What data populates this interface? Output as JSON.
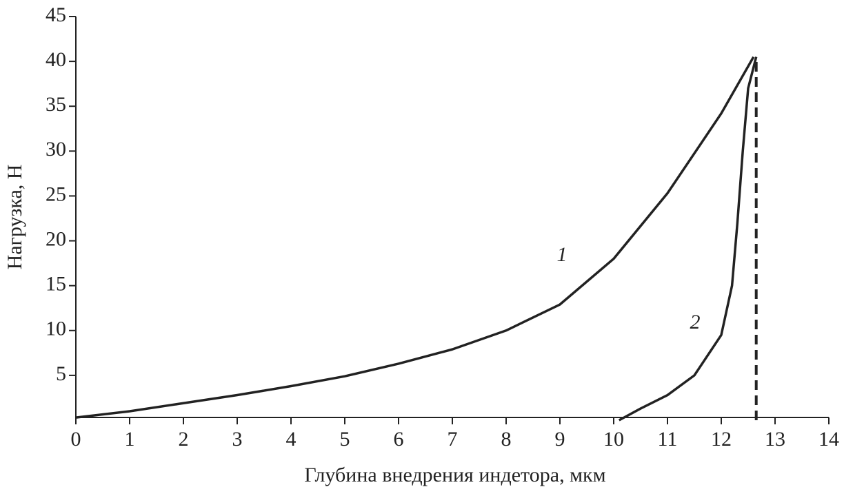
{
  "chart_data": {
    "type": "line",
    "x_label": "Глубина внедрения индетора, мкм",
    "y_label": "Нагрузка, Н",
    "xlim": [
      0,
      14
    ],
    "xticks": [
      0,
      1,
      2,
      3,
      4,
      5,
      6,
      7,
      8,
      9,
      10,
      11,
      12,
      13,
      14
    ],
    "ylim": [
      0,
      45
    ],
    "yticks": [
      5,
      10,
      15,
      20,
      25,
      30,
      35,
      40,
      45
    ],
    "grid": false,
    "series": [
      {
        "name": "1",
        "color": "#222222",
        "x": [
          0,
          1,
          2,
          3,
          4,
          5,
          6,
          7,
          8,
          9,
          10,
          11,
          12,
          12.6
        ],
        "values": [
          0.3,
          1,
          1.9,
          2.8,
          3.8,
          4.9,
          6.3,
          7.9,
          10,
          12.9,
          18,
          25.3,
          34.2,
          40.5
        ]
      },
      {
        "name": "2",
        "color": "#222222",
        "x": [
          10.1,
          10.5,
          11,
          11.5,
          12,
          12.2,
          12.3,
          12.4,
          12.5,
          12.65
        ],
        "values": [
          0,
          1.3,
          2.8,
          5,
          9.5,
          15,
          22,
          30,
          37,
          40.5
        ]
      },
      {
        "color": "#222222",
        "dashed": true,
        "x": [
          12.65,
          12.65
        ],
        "values": [
          0,
          40
        ]
      }
    ]
  }
}
